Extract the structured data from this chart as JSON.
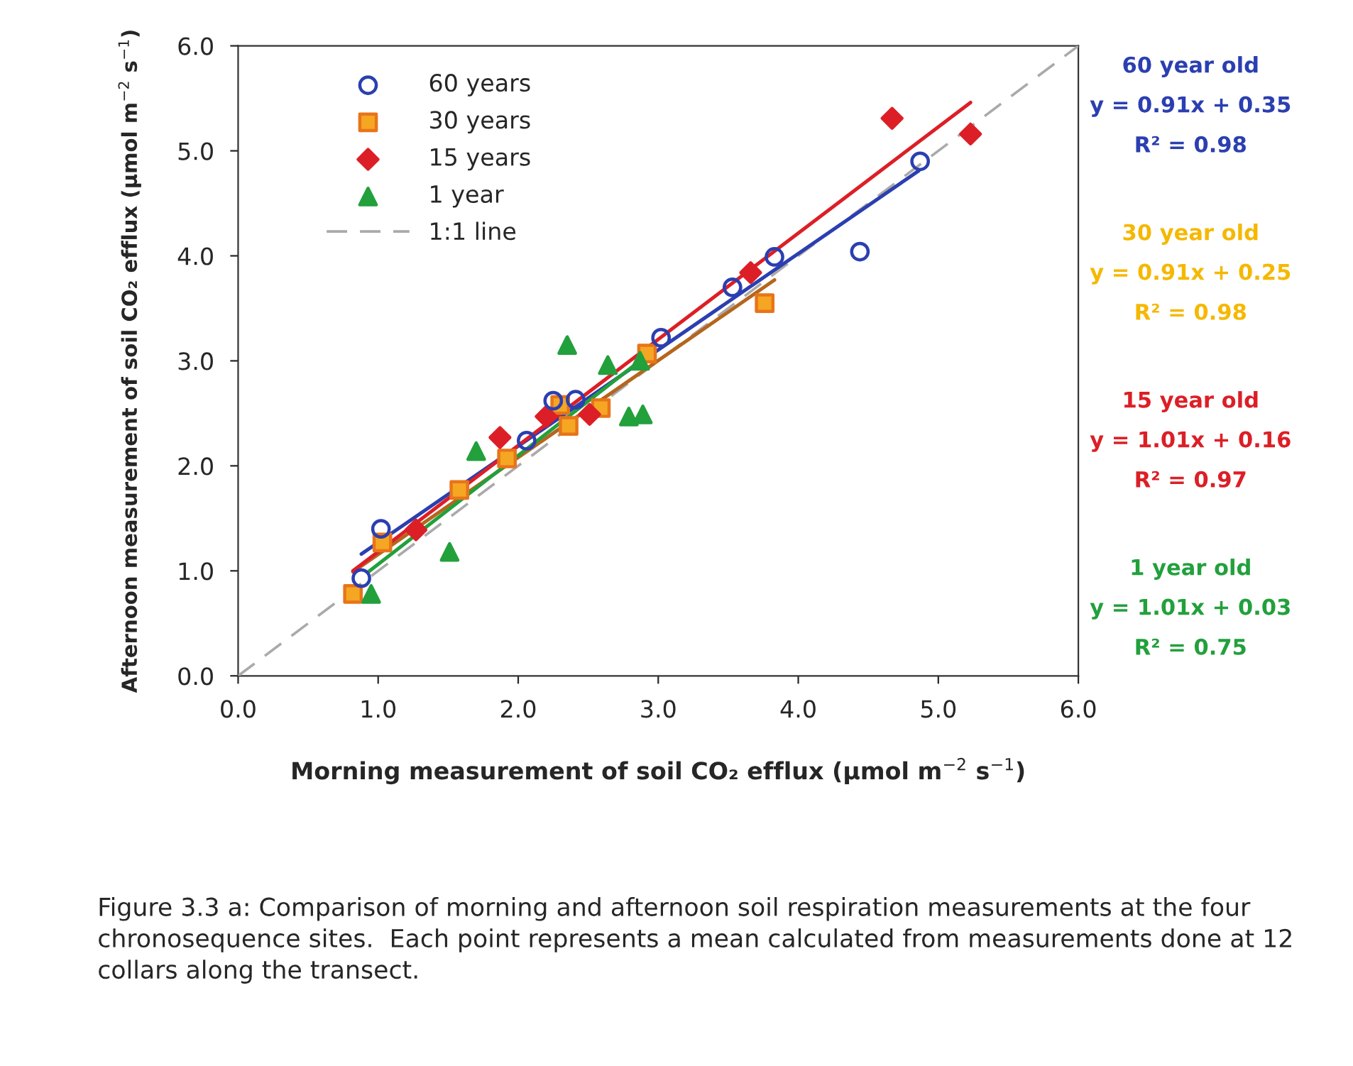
{
  "chart_data": {
    "type": "scatter",
    "xlabel": "Morning measurement of soil CO₂ efflux (μmol m$^{−2}$ s$^{−1}$)",
    "ylabel": "Afternoon measurement of soil CO₂ efflux (μmol m$^{−2}$ s$^{−1}$)",
    "xlim": [
      0,
      6
    ],
    "ylim": [
      0,
      6
    ],
    "xticks": [
      {
        "value": 0,
        "label": "0.0"
      },
      {
        "value": 1,
        "label": "1.0"
      },
      {
        "value": 2,
        "label": "2.0"
      },
      {
        "value": 3,
        "label": "3.0"
      },
      {
        "value": 4,
        "label": "4.0"
      },
      {
        "value": 5,
        "label": "5.0"
      },
      {
        "value": 6,
        "label": "6.0"
      }
    ],
    "yticks": [
      {
        "value": 0,
        "label": "0.0"
      },
      {
        "value": 1,
        "label": "1.0"
      },
      {
        "value": 2,
        "label": "2.0"
      },
      {
        "value": 3,
        "label": "3.0"
      },
      {
        "value": 4,
        "label": "4.0"
      },
      {
        "value": 5,
        "label": "5.0"
      },
      {
        "value": 6,
        "label": "6.0"
      }
    ],
    "grid": false,
    "legend": "top left",
    "series": [
      {
        "name": "60 years",
        "marker": "circle",
        "color": "#2b3fb0",
        "x": [
          0.88,
          1.02,
          2.06,
          2.25,
          2.41,
          3.02,
          3.53,
          3.83,
          4.44,
          4.87
        ],
        "values": [
          0.93,
          1.4,
          2.24,
          2.62,
          2.63,
          3.22,
          3.7,
          3.99,
          4.04,
          4.9
        ]
      },
      {
        "name": "30 years",
        "marker": "square",
        "color": "#f5a623",
        "x": [
          0.82,
          1.03,
          1.58,
          1.92,
          2.3,
          2.36,
          2.59,
          2.92,
          3.76
        ],
        "values": [
          0.78,
          1.27,
          1.77,
          2.07,
          2.58,
          2.38,
          2.55,
          3.07,
          3.55
        ]
      },
      {
        "name": "15 years",
        "marker": "diamond",
        "color": "#dc1f26",
        "x": [
          1.27,
          1.87,
          2.2,
          2.51,
          3.66,
          4.67,
          5.23
        ],
        "values": [
          1.39,
          2.27,
          2.47,
          2.49,
          3.84,
          5.31,
          5.16
        ]
      },
      {
        "name": "1 year",
        "marker": "triangle",
        "color": "#22a03c",
        "x": [
          0.95,
          1.51,
          1.7,
          2.35,
          2.64,
          2.79,
          2.87,
          2.89
        ],
        "values": [
          0.78,
          1.18,
          2.14,
          3.15,
          2.96,
          2.47,
          3.0,
          2.49
        ]
      },
      {
        "name": "1:1 line",
        "type": "line",
        "line_style": "dashed",
        "color": "#aaaaaa",
        "x": [
          0,
          6
        ],
        "values": [
          0,
          6
        ]
      },
      {
        "type": "line",
        "line_style": "solid",
        "color": "#2b3fb0",
        "x": [
          0.88,
          4.86
        ],
        "values": [
          1.16,
          4.81
        ]
      },
      {
        "type": "line",
        "line_style": "solid",
        "color": "#b5651d",
        "x": [
          0.82,
          3.83
        ],
        "values": [
          0.99,
          3.77
        ]
      },
      {
        "type": "line",
        "line_style": "solid",
        "color": "#dc1f26",
        "x": [
          0.82,
          5.23
        ],
        "values": [
          1.0,
          5.46
        ]
      },
      {
        "type": "line",
        "line_style": "solid",
        "color": "#22a03c",
        "x": [
          0.93,
          2.86
        ],
        "values": [
          0.99,
          2.99
        ]
      }
    ],
    "annotations": [
      "60 year old",
      "y = 0.91x + 0.35",
      "R² = 0.98",
      "30 year old",
      "y = 0.91x + 0.25",
      "R² = 0.98",
      "15 year old",
      "y = 1.01x + 0.16",
      "R² = 0.97",
      "1 year old",
      "y = 1.01x + 0.03",
      "R² = 0.75",
      "Figure 3.3 a: Comparison of morning and afternoon soil respiration measurements at the four chronosequence sites.  Each point represents a mean calculated from measurements done at 12 collars along the transect."
    ]
  }
}
